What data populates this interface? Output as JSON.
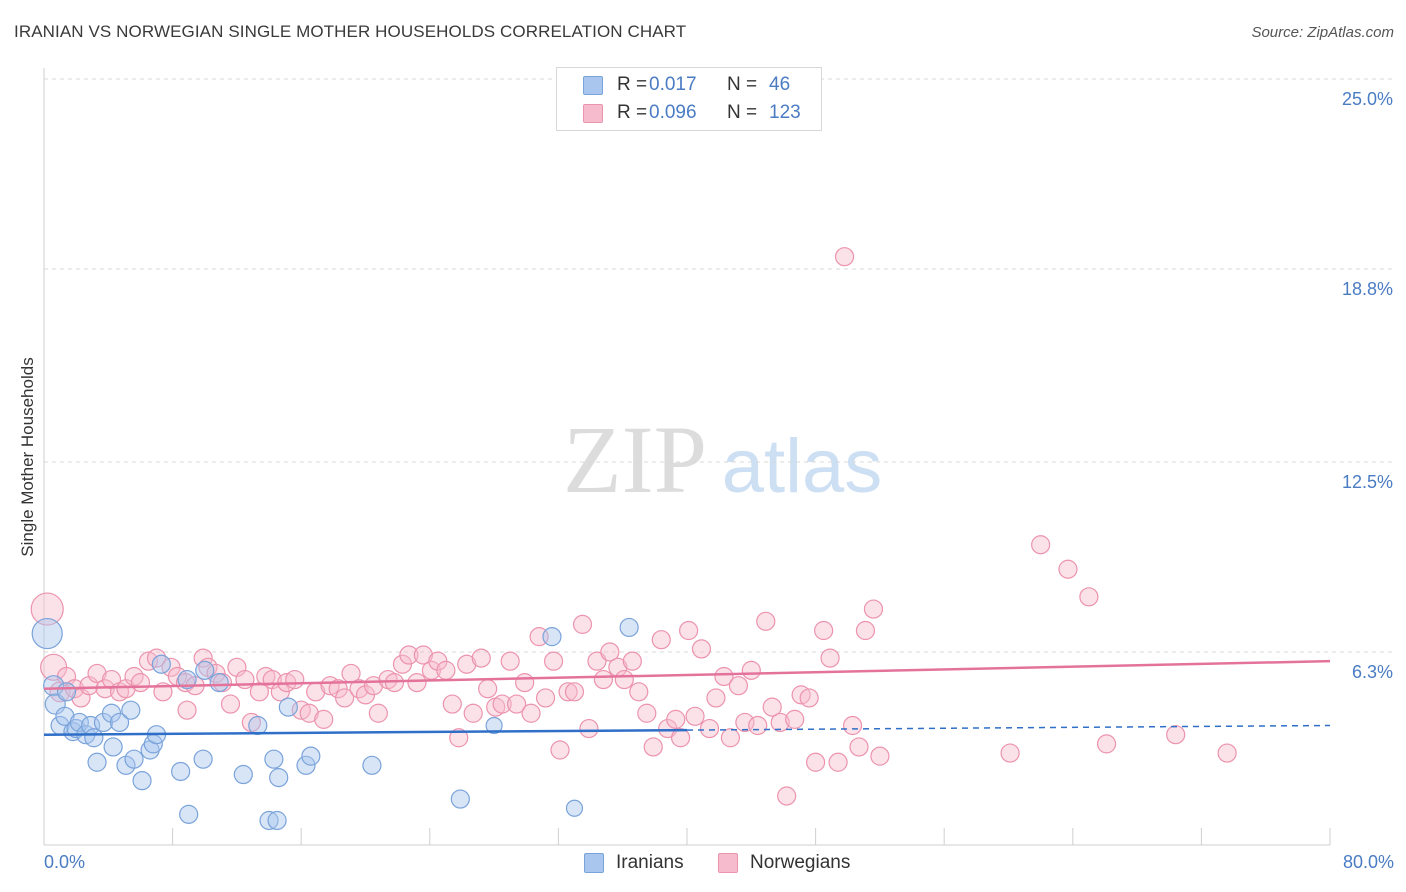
{
  "header": {
    "title": "IRANIAN VS NORWEGIAN SINGLE MOTHER HOUSEHOLDS CORRELATION CHART",
    "source": "Source: ZipAtlas.com"
  },
  "watermark": {
    "zip": "ZIP",
    "atlas": "atlas"
  },
  "colors": {
    "blue_fill": "#a9c6ee",
    "blue_stroke": "#7aa3da",
    "blue_line": "#2f6fc8",
    "pink_fill": "#f6bccd",
    "pink_stroke": "#ec93ae",
    "pink_line": "#e4739b",
    "tick_text": "#4a7cc4",
    "grid": "#d9d9d9"
  },
  "legend": {
    "rows": [
      {
        "series": "Iranians",
        "r_label": "R =",
        "r_value": "0.017",
        "n_label": "N =",
        "n_value": "46"
      },
      {
        "series": "Norwegians",
        "r_label": "R =",
        "r_value": "0.096",
        "n_label": "N =",
        "n_value": "123"
      }
    ]
  },
  "bottom_legend": {
    "items": [
      "Iranians",
      "Norwegians"
    ]
  },
  "chart_data": {
    "type": "scatter",
    "title": "IRANIAN VS NORWEGIAN SINGLE MOTHER HOUSEHOLDS CORRELATION CHART",
    "xlabel": "",
    "ylabel": "Single Mother Households",
    "xlim": [
      0,
      80
    ],
    "ylim": [
      0,
      25.0
    ],
    "x_tick_labels": [
      "0.0%",
      "80.0%"
    ],
    "y_ticks": [
      6.3,
      12.5,
      18.8,
      25.0
    ],
    "y_tick_labels": [
      "6.3%",
      "12.5%",
      "18.8%",
      "25.0%"
    ],
    "grid": "horizontal dashed",
    "legend_position": "top-center",
    "series": [
      {
        "name": "Iranians",
        "r": 0.017,
        "n": 46,
        "trend": {
          "x": [
            0,
            80
          ],
          "y": [
            3.6,
            3.9
          ],
          "solid_until_x": 40
        },
        "points": [
          [
            0.2,
            6.9,
            30
          ],
          [
            0.6,
            5.2,
            20
          ],
          [
            0.7,
            4.6,
            20
          ],
          [
            1.0,
            3.9,
            18
          ],
          [
            1.3,
            4.2,
            18
          ],
          [
            1.4,
            5.0,
            18
          ],
          [
            1.8,
            3.7,
            18
          ],
          [
            2.0,
            3.8,
            18
          ],
          [
            2.2,
            4.0,
            18
          ],
          [
            2.6,
            3.6,
            18
          ],
          [
            2.9,
            3.9,
            18
          ],
          [
            3.1,
            3.5,
            18
          ],
          [
            3.3,
            2.7,
            18
          ],
          [
            3.7,
            4.0,
            18
          ],
          [
            4.2,
            4.3,
            18
          ],
          [
            4.3,
            3.2,
            18
          ],
          [
            4.7,
            4.0,
            18
          ],
          [
            5.1,
            2.6,
            18
          ],
          [
            5.4,
            4.4,
            18
          ],
          [
            5.6,
            2.8,
            18
          ],
          [
            6.1,
            2.1,
            18
          ],
          [
            6.6,
            3.1,
            18
          ],
          [
            6.8,
            3.3,
            18
          ],
          [
            7.0,
            3.6,
            18
          ],
          [
            7.3,
            5.9,
            18
          ],
          [
            8.5,
            2.4,
            18
          ],
          [
            8.9,
            5.4,
            18
          ],
          [
            9.0,
            1.0,
            18
          ],
          [
            9.9,
            2.8,
            18
          ],
          [
            10.0,
            5.7,
            18
          ],
          [
            10.9,
            5.3,
            18
          ],
          [
            12.4,
            2.3,
            18
          ],
          [
            13.3,
            3.9,
            18
          ],
          [
            14.0,
            0.8,
            18
          ],
          [
            14.3,
            2.8,
            18
          ],
          [
            14.6,
            2.2,
            18
          ],
          [
            14.5,
            0.8,
            18
          ],
          [
            15.2,
            4.5,
            18
          ],
          [
            16.3,
            2.6,
            18
          ],
          [
            16.6,
            2.9,
            18
          ],
          [
            20.4,
            2.6,
            18
          ],
          [
            25.9,
            1.5,
            18
          ],
          [
            31.6,
            6.8,
            18
          ],
          [
            36.4,
            7.1,
            18
          ],
          [
            33.0,
            1.2,
            16
          ],
          [
            28.0,
            3.9,
            16
          ]
        ]
      },
      {
        "name": "Norwegians",
        "r": 0.096,
        "n": 123,
        "trend": {
          "x": [
            0,
            80
          ],
          "y": [
            5.1,
            6.0
          ]
        },
        "points": [
          [
            0.2,
            7.7,
            32
          ],
          [
            0.6,
            5.8,
            26
          ],
          [
            1.0,
            5.0,
            20
          ],
          [
            1.4,
            5.5,
            18
          ],
          [
            1.9,
            5.1,
            18
          ],
          [
            2.3,
            4.8,
            18
          ],
          [
            2.8,
            5.2,
            18
          ],
          [
            3.3,
            5.6,
            18
          ],
          [
            3.8,
            5.1,
            18
          ],
          [
            4.2,
            5.4,
            18
          ],
          [
            4.7,
            5.0,
            18
          ],
          [
            5.1,
            5.1,
            18
          ],
          [
            5.6,
            5.5,
            18
          ],
          [
            6.0,
            5.3,
            18
          ],
          [
            6.5,
            6.0,
            18
          ],
          [
            7.0,
            6.1,
            18
          ],
          [
            7.4,
            5.0,
            18
          ],
          [
            7.9,
            5.8,
            18
          ],
          [
            8.3,
            5.5,
            18
          ],
          [
            8.8,
            5.3,
            18
          ],
          [
            8.9,
            4.4,
            18
          ],
          [
            9.4,
            5.2,
            18
          ],
          [
            9.9,
            6.1,
            18
          ],
          [
            10.2,
            5.8,
            18
          ],
          [
            10.7,
            5.6,
            18
          ],
          [
            11.1,
            5.3,
            18
          ],
          [
            11.6,
            4.6,
            18
          ],
          [
            12.0,
            5.8,
            18
          ],
          [
            12.5,
            5.4,
            18
          ],
          [
            12.9,
            4.0,
            18
          ],
          [
            13.4,
            5.0,
            18
          ],
          [
            13.8,
            5.5,
            18
          ],
          [
            14.2,
            5.4,
            18
          ],
          [
            14.7,
            5.0,
            18
          ],
          [
            15.1,
            5.3,
            18
          ],
          [
            15.6,
            5.4,
            18
          ],
          [
            16.0,
            4.4,
            18
          ],
          [
            16.5,
            4.3,
            18
          ],
          [
            16.9,
            5.0,
            18
          ],
          [
            17.4,
            4.1,
            18
          ],
          [
            17.8,
            5.2,
            18
          ],
          [
            18.3,
            5.1,
            18
          ],
          [
            18.7,
            4.8,
            18
          ],
          [
            19.1,
            5.6,
            18
          ],
          [
            19.6,
            5.1,
            18
          ],
          [
            20.0,
            4.9,
            18
          ],
          [
            20.5,
            5.2,
            18
          ],
          [
            20.8,
            4.3,
            18
          ],
          [
            21.4,
            5.4,
            18
          ],
          [
            21.8,
            5.3,
            18
          ],
          [
            22.3,
            5.9,
            18
          ],
          [
            22.7,
            6.2,
            18
          ],
          [
            23.2,
            5.3,
            18
          ],
          [
            23.6,
            6.2,
            18
          ],
          [
            24.1,
            5.7,
            18
          ],
          [
            24.5,
            6.0,
            18
          ],
          [
            25.0,
            5.7,
            18
          ],
          [
            25.4,
            4.6,
            18
          ],
          [
            25.8,
            3.5,
            18
          ],
          [
            26.3,
            5.9,
            18
          ],
          [
            26.7,
            4.3,
            18
          ],
          [
            27.2,
            6.1,
            18
          ],
          [
            27.6,
            5.1,
            18
          ],
          [
            28.1,
            4.5,
            18
          ],
          [
            28.5,
            4.6,
            18
          ],
          [
            29.0,
            6.0,
            18
          ],
          [
            29.4,
            4.6,
            18
          ],
          [
            29.9,
            5.3,
            18
          ],
          [
            30.3,
            4.3,
            18
          ],
          [
            30.8,
            6.8,
            18
          ],
          [
            31.2,
            4.8,
            18
          ],
          [
            31.7,
            6.0,
            18
          ],
          [
            32.1,
            3.1,
            18
          ],
          [
            32.6,
            5.0,
            18
          ],
          [
            33.0,
            5.0,
            18
          ],
          [
            33.5,
            7.2,
            18
          ],
          [
            33.9,
            3.8,
            18
          ],
          [
            34.4,
            6.0,
            18
          ],
          [
            34.8,
            5.4,
            18
          ],
          [
            35.2,
            6.3,
            18
          ],
          [
            35.7,
            5.8,
            18
          ],
          [
            36.1,
            5.4,
            18
          ],
          [
            36.6,
            6.0,
            18
          ],
          [
            37.0,
            5.0,
            18
          ],
          [
            37.5,
            4.3,
            18
          ],
          [
            37.9,
            3.2,
            18
          ],
          [
            38.4,
            6.7,
            18
          ],
          [
            38.8,
            3.8,
            18
          ],
          [
            39.3,
            4.1,
            18
          ],
          [
            39.6,
            3.5,
            18
          ],
          [
            40.1,
            7.0,
            18
          ],
          [
            40.5,
            4.2,
            18
          ],
          [
            40.9,
            6.4,
            18
          ],
          [
            41.4,
            3.8,
            18
          ],
          [
            41.8,
            4.8,
            18
          ],
          [
            42.3,
            5.5,
            18
          ],
          [
            42.7,
            3.5,
            18
          ],
          [
            43.2,
            5.2,
            18
          ],
          [
            43.6,
            4.0,
            18
          ],
          [
            44.0,
            5.7,
            18
          ],
          [
            44.4,
            3.9,
            18
          ],
          [
            44.9,
            7.3,
            18
          ],
          [
            45.3,
            4.5,
            18
          ],
          [
            45.8,
            4.0,
            18
          ],
          [
            46.2,
            1.6,
            18
          ],
          [
            46.7,
            4.1,
            18
          ],
          [
            47.1,
            4.9,
            18
          ],
          [
            47.6,
            4.8,
            18
          ],
          [
            48.0,
            2.7,
            18
          ],
          [
            48.5,
            7.0,
            18
          ],
          [
            48.9,
            6.1,
            18
          ],
          [
            49.4,
            2.7,
            18
          ],
          [
            49.8,
            19.2,
            18
          ],
          [
            50.3,
            3.9,
            18
          ],
          [
            50.7,
            3.2,
            18
          ],
          [
            51.1,
            7.0,
            18
          ],
          [
            51.6,
            7.7,
            18
          ],
          [
            52.0,
            2.9,
            18
          ],
          [
            60.1,
            3.0,
            18
          ],
          [
            62.0,
            9.8,
            18
          ],
          [
            63.7,
            9.0,
            18
          ],
          [
            65.0,
            8.1,
            18
          ],
          [
            66.1,
            3.3,
            18
          ],
          [
            73.6,
            3.0,
            18
          ],
          [
            70.4,
            3.6,
            18
          ]
        ]
      }
    ]
  }
}
